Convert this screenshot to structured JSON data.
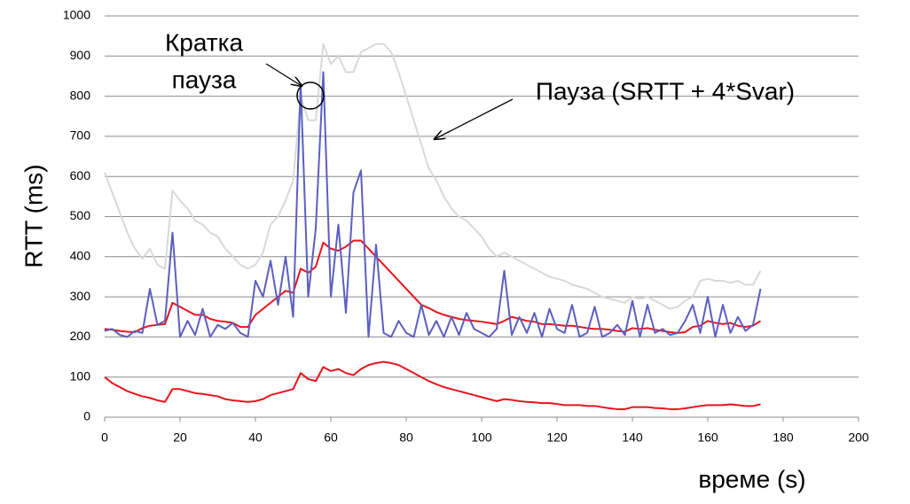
{
  "chart_data": {
    "type": "line",
    "xlabel": "време (s)",
    "ylabel": "RTT (ms)",
    "annotations": [
      "Кратка",
      "пауза",
      "Пауза (SRTT + 4*Svar)"
    ],
    "x": [
      0,
      2,
      4,
      6,
      8,
      10,
      12,
      14,
      16,
      18,
      20,
      22,
      24,
      26,
      28,
      30,
      32,
      34,
      36,
      38,
      40,
      42,
      44,
      46,
      48,
      50,
      52,
      54,
      56,
      58,
      60,
      62,
      64,
      66,
      68,
      70,
      72,
      74,
      76,
      78,
      80,
      82,
      84,
      86,
      88,
      90,
      92,
      94,
      96,
      98,
      100,
      102,
      104,
      106,
      108,
      110,
      112,
      114,
      116,
      118,
      120,
      122,
      124,
      126,
      128,
      130,
      132,
      134,
      136,
      138,
      140,
      142,
      144,
      146,
      148,
      150,
      152,
      154,
      156,
      158,
      160,
      162,
      164,
      166,
      168,
      170,
      172,
      174
    ],
    "series": [
      {
        "color": "#d9d9d9",
        "values": [
          610,
          560,
          510,
          460,
          420,
          395,
          420,
          380,
          370,
          565,
          540,
          520,
          490,
          480,
          460,
          450,
          420,
          400,
          380,
          370,
          380,
          410,
          480,
          500,
          540,
          590,
          800,
          740,
          740,
          930,
          880,
          900,
          860,
          860,
          910,
          920,
          930,
          930,
          910,
          860,
          800,
          740,
          680,
          620,
          590,
          550,
          520,
          500,
          490,
          470,
          450,
          420,
          400,
          410,
          400,
          390,
          380,
          370,
          360,
          350,
          345,
          340,
          330,
          325,
          320,
          310,
          300,
          295,
          290,
          285,
          300,
          295,
          300,
          290,
          280,
          270,
          275,
          290,
          300,
          340,
          345,
          340,
          340,
          335,
          340,
          330,
          330,
          365
        ]
      },
      {
        "color": "#e8141c",
        "values": [
          100,
          85,
          75,
          65,
          58,
          52,
          48,
          42,
          38,
          70,
          70,
          65,
          60,
          58,
          55,
          52,
          45,
          42,
          40,
          38,
          40,
          45,
          55,
          60,
          65,
          70,
          110,
          95,
          90,
          125,
          115,
          120,
          110,
          105,
          120,
          130,
          135,
          138,
          135,
          130,
          120,
          110,
          100,
          90,
          82,
          75,
          70,
          65,
          60,
          55,
          50,
          45,
          40,
          45,
          43,
          40,
          38,
          37,
          35,
          35,
          33,
          30,
          30,
          30,
          28,
          28,
          25,
          22,
          20,
          20,
          25,
          25,
          25,
          23,
          22,
          20,
          20,
          22,
          25,
          28,
          30,
          30,
          30,
          32,
          30,
          28,
          28,
          32
        ]
      },
      {
        "color": "#e8141c",
        "values": [
          220,
          218,
          215,
          213,
          212,
          222,
          228,
          230,
          232,
          285,
          275,
          265,
          255,
          255,
          245,
          240,
          238,
          235,
          225,
          225,
          255,
          270,
          285,
          300,
          315,
          310,
          370,
          360,
          375,
          435,
          420,
          415,
          425,
          440,
          440,
          420,
          400,
          380,
          360,
          340,
          320,
          300,
          280,
          272,
          262,
          255,
          250,
          245,
          242,
          240,
          238,
          235,
          232,
          240,
          250,
          245,
          240,
          238,
          232,
          232,
          230,
          228,
          228,
          225,
          222,
          220,
          220,
          218,
          215,
          213,
          222,
          220,
          222,
          218,
          215,
          212,
          210,
          212,
          225,
          228,
          240,
          235,
          232,
          235,
          228,
          225,
          228,
          240
        ]
      },
      {
        "color": "#5b5fc0",
        "values": [
          215,
          220,
          205,
          200,
          215,
          210,
          320,
          230,
          240,
          460,
          200,
          240,
          205,
          270,
          200,
          230,
          220,
          235,
          210,
          200,
          340,
          300,
          390,
          280,
          400,
          250,
          830,
          300,
          470,
          860,
          300,
          480,
          260,
          560,
          615,
          200,
          430,
          210,
          200,
          240,
          210,
          200,
          280,
          205,
          240,
          200,
          250,
          205,
          260,
          220,
          210,
          200,
          220,
          365,
          205,
          250,
          210,
          260,
          200,
          270,
          220,
          210,
          280,
          200,
          210,
          275,
          200,
          210,
          230,
          205,
          290,
          200,
          280,
          210,
          220,
          205,
          210,
          240,
          280,
          210,
          300,
          200,
          280,
          210,
          250,
          215,
          230,
          320
        ]
      }
    ],
    "xlim": [
      0,
      200
    ],
    "xticks": [
      0,
      20,
      40,
      60,
      80,
      100,
      120,
      140,
      160,
      180,
      200
    ],
    "ylim": [
      0,
      1000
    ],
    "yticks": [
      0,
      100,
      200,
      300,
      400,
      500,
      600,
      700,
      800,
      900,
      1000
    ],
    "grid": true
  }
}
